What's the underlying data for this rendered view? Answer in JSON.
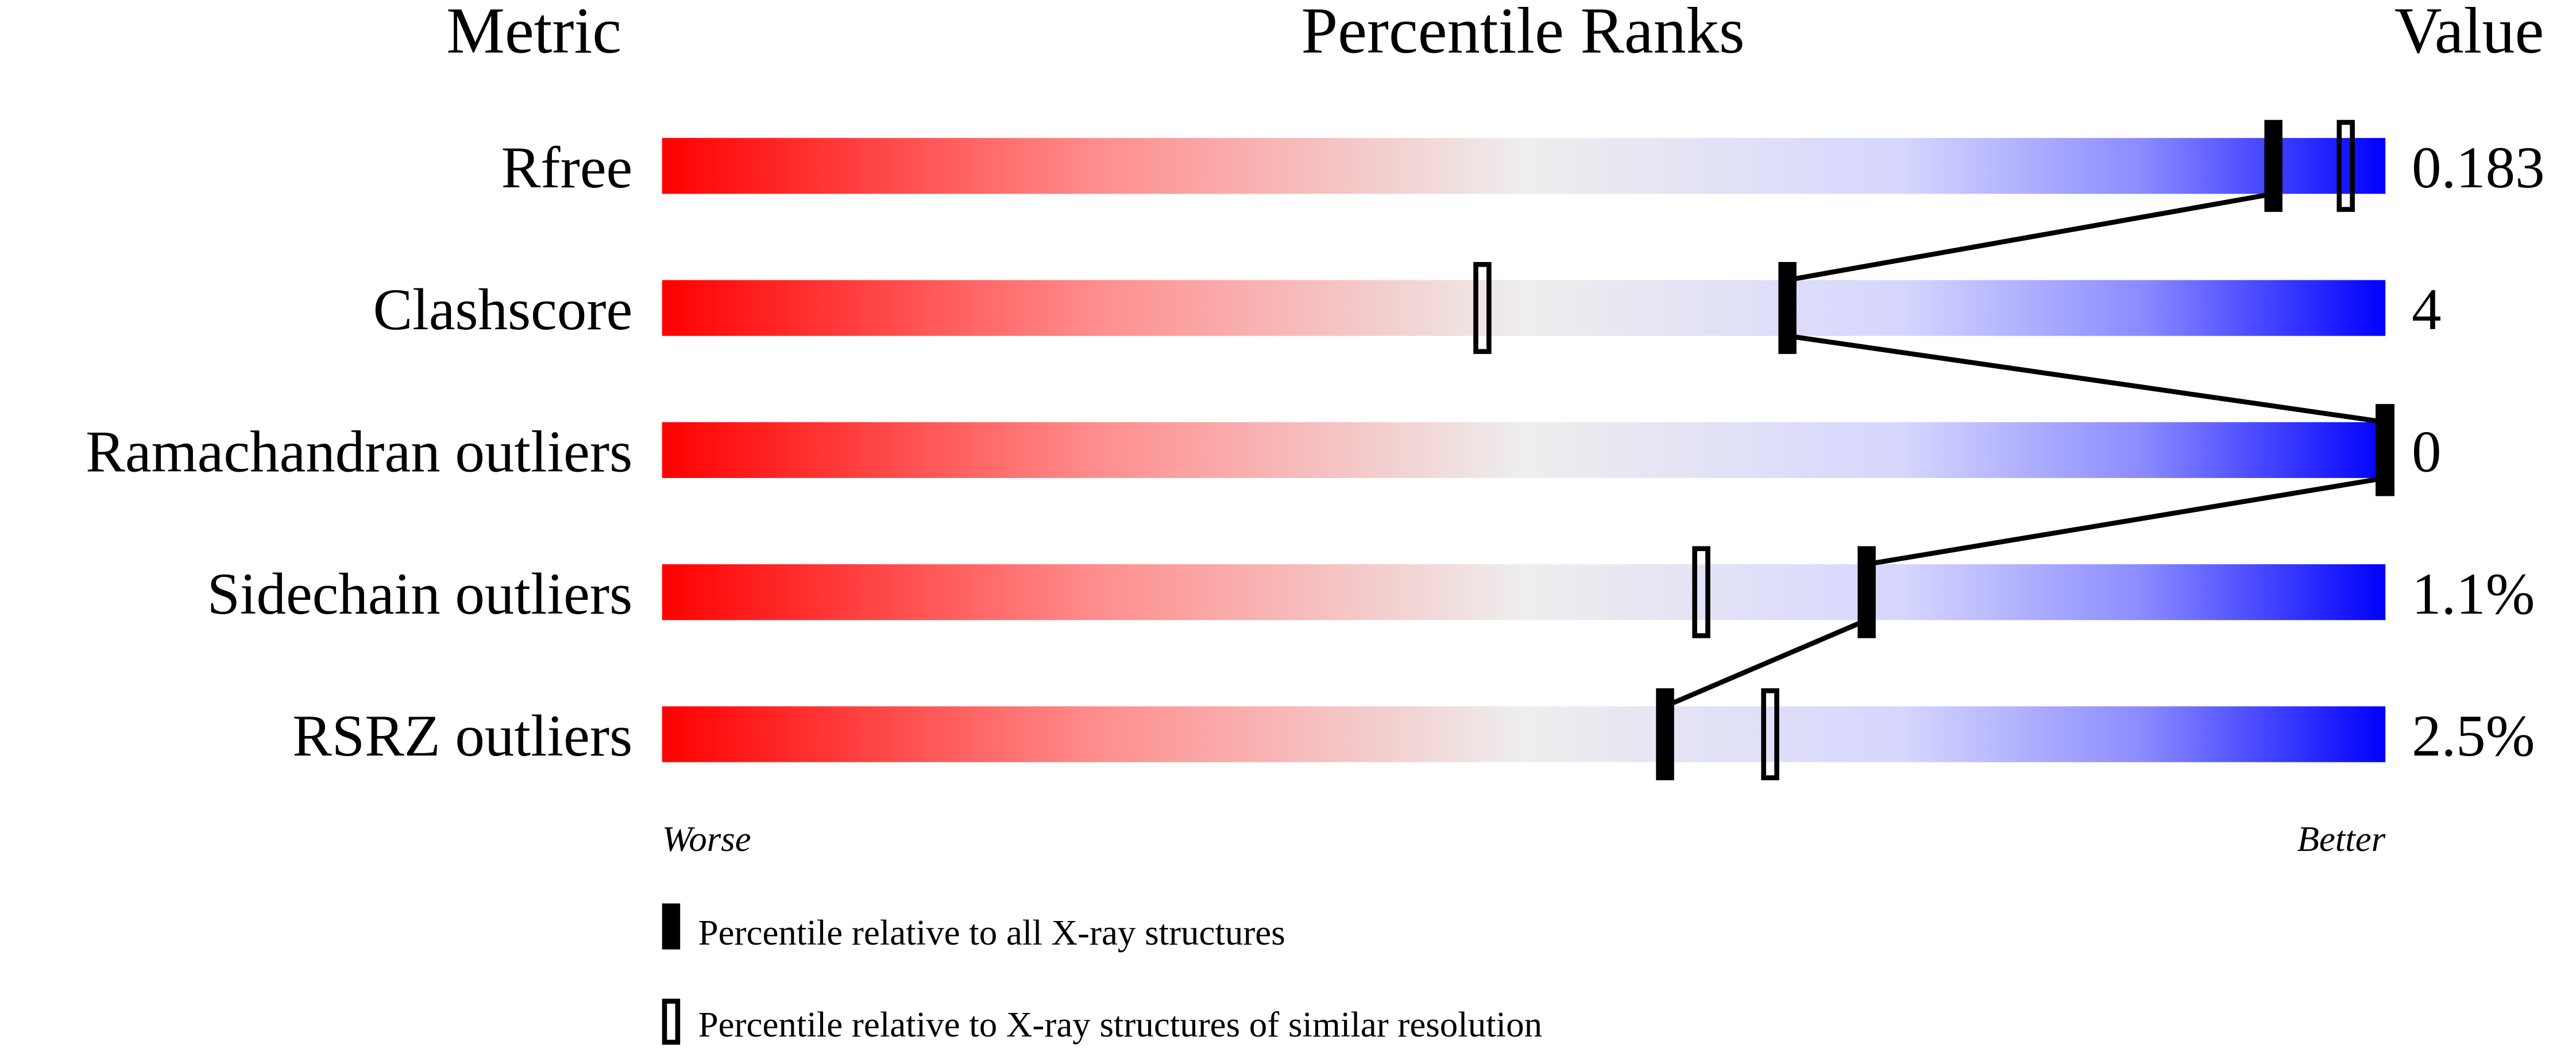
{
  "chart_data": {
    "type": "percentile-ranks",
    "headers": {
      "metric": "Metric",
      "ranks": "Percentile Ranks",
      "value": "Value"
    },
    "xlim": [
      0,
      100
    ],
    "axis_labels": {
      "left": "Worse",
      "right": "Better"
    },
    "colors": {
      "worse": "#ff0000",
      "middle": "#eeeeee",
      "better": "#0000ff",
      "marker": "#000000"
    },
    "metrics": [
      {
        "name": "Rfree",
        "value": "0.183",
        "percentile_all": 93.5,
        "percentile_similar": 97.7
      },
      {
        "name": "Clashscore",
        "value": "4",
        "percentile_all": 65.3,
        "percentile_similar": 47.6
      },
      {
        "name": "Ramachandran outliers",
        "value": "0",
        "percentile_all": 100,
        "percentile_similar": 100
      },
      {
        "name": "Sidechain outliers",
        "value": "1.1%",
        "percentile_all": 69.9,
        "percentile_similar": 60.3
      },
      {
        "name": "RSRZ outliers",
        "value": "2.5%",
        "percentile_all": 58.2,
        "percentile_similar": 64.3
      }
    ],
    "legend": [
      {
        "marker": "filled",
        "label": "Percentile relative to all X-ray structures"
      },
      {
        "marker": "open",
        "label": "Percentile relative to X-ray structures of similar resolution"
      }
    ]
  }
}
